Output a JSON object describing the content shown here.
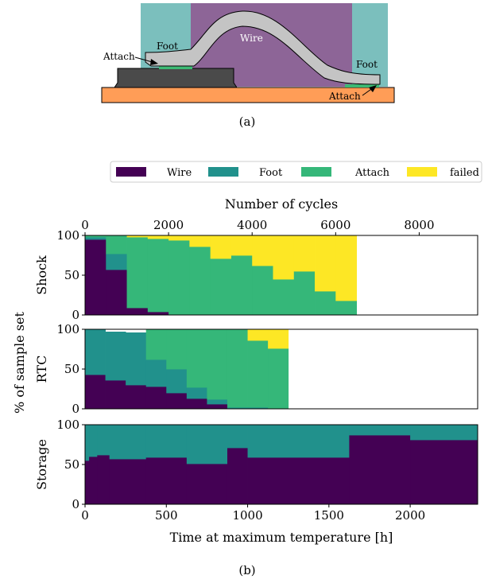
{
  "diagram": {
    "labels": {
      "foot_left": "Foot",
      "foot_right": "Foot",
      "wire": "Wire",
      "attach_left": "Attach",
      "attach_right": "Attach"
    },
    "caption": "(a)",
    "colors": {
      "foot": "#7bbfbd",
      "wire_bg": "#8d6597",
      "wire": "#c4c4c4",
      "chip": "#4a4a4a",
      "substrate": "#ff9d57",
      "attach": "#3cba74"
    }
  },
  "figure_b": {
    "caption": "(b)",
    "ylabel_shared": "% of sample set"
  },
  "chart_data": [
    {
      "type": "area",
      "panel": "Shock",
      "ylabel": "Shock",
      "top_axis_label": "Number of cycles",
      "top_axis_ticks": [
        0,
        2000,
        4000,
        6000,
        8000
      ],
      "xlim_cycles": [
        0,
        9400
      ],
      "ylim": [
        0,
        100
      ],
      "yticks": [
        0,
        50,
        100
      ],
      "step_edges_cycles": [
        0,
        500,
        1000,
        1500,
        2000,
        2500,
        3000,
        3500,
        4000,
        4500,
        5000,
        5500,
        6000,
        6500
      ],
      "series": [
        {
          "name": "Wire",
          "values": [
            95,
            57,
            9,
            4,
            0,
            0,
            0,
            0,
            0,
            0,
            0,
            0,
            0
          ]
        },
        {
          "name": "Foot",
          "values": [
            3,
            20,
            0,
            0,
            0,
            0,
            0,
            0,
            0,
            0,
            0,
            0,
            0
          ]
        },
        {
          "name": "Attach",
          "values": [
            2,
            23,
            89,
            92,
            94,
            86,
            71,
            75,
            62,
            45,
            55,
            30,
            18
          ]
        },
        {
          "name": "failed",
          "values": [
            0,
            0,
            2,
            4,
            6,
            14,
            29,
            25,
            38,
            55,
            45,
            70,
            82
          ]
        }
      ]
    },
    {
      "type": "area",
      "panel": "RTC",
      "ylabel": "RTC",
      "xlim": [
        0,
        2415
      ],
      "ylim": [
        0,
        100
      ],
      "yticks": [
        0,
        50,
        100
      ],
      "step_edges_hours": [
        0,
        125,
        250,
        375,
        500,
        625,
        750,
        875,
        1000,
        1125,
        1250
      ],
      "series": [
        {
          "name": "Wire",
          "values": [
            43,
            36,
            30,
            28,
            20,
            13,
            6,
            0,
            0,
            0
          ]
        },
        {
          "name": "Foot",
          "values": [
            57,
            61,
            66,
            34,
            30,
            14,
            6,
            2,
            2,
            0
          ]
        },
        {
          "name": "Attach",
          "values": [
            0,
            0,
            0,
            38,
            50,
            73,
            88,
            98,
            84,
            76
          ]
        },
        {
          "name": "failed",
          "values": [
            0,
            0,
            0,
            0,
            0,
            0,
            0,
            0,
            14,
            24
          ]
        }
      ]
    },
    {
      "type": "area",
      "panel": "Storage",
      "ylabel": "Storage",
      "xlabel": "Time at maximum temperature [h]",
      "xlim": [
        0,
        2415
      ],
      "xticks": [
        0,
        500,
        1000,
        1500,
        2000
      ],
      "ylim": [
        0,
        100
      ],
      "yticks": [
        0,
        50,
        100
      ],
      "step_edges_hours": [
        0,
        25,
        75,
        150,
        375,
        625,
        875,
        1000,
        1625,
        2000,
        2415
      ],
      "series": [
        {
          "name": "Wire",
          "values": [
            55,
            60,
            62,
            57,
            59,
            51,
            71,
            59,
            87,
            81
          ]
        },
        {
          "name": "Foot",
          "values": [
            45,
            40,
            38,
            43,
            41,
            49,
            29,
            41,
            13,
            19
          ]
        }
      ]
    }
  ],
  "legend": {
    "placement": "top",
    "entries": [
      {
        "name": "Wire",
        "color": "#440154"
      },
      {
        "name": "Foot",
        "color": "#21918c"
      },
      {
        "name": "Attach",
        "color": "#35b779"
      },
      {
        "name": "failed",
        "color": "#fde725"
      }
    ]
  }
}
